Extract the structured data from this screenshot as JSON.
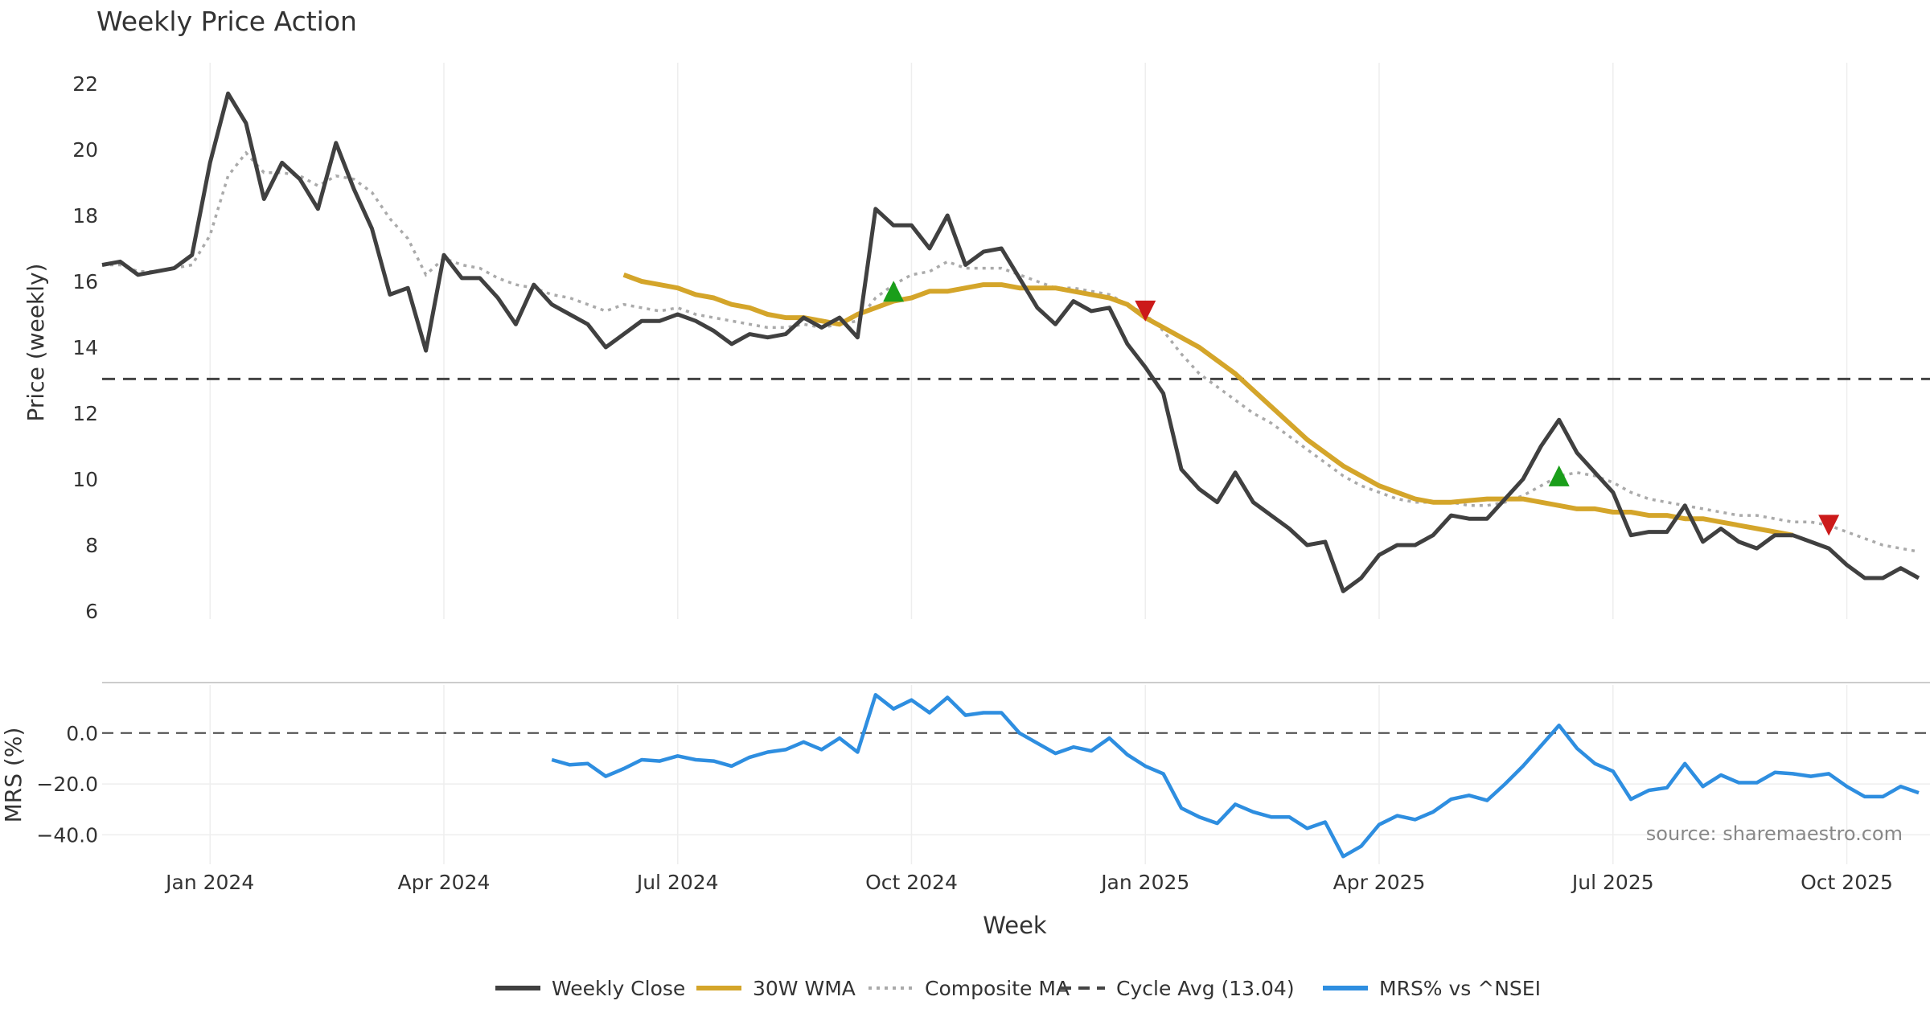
{
  "chart_data": {
    "type": "line",
    "title": "Weekly Price Action",
    "source_note": "source: sharemaestro.com",
    "xlabel": "Week",
    "x_ticks": [
      "Jan 2024",
      "Apr 2024",
      "Jul 2024",
      "Oct 2024",
      "Jan 2025",
      "Apr 2025",
      "Jul 2025",
      "Oct 2025"
    ],
    "x_tick_weeks": [
      6,
      19,
      32,
      45,
      58,
      71,
      84,
      97
    ],
    "x_range": [
      0,
      101
    ],
    "grid": true,
    "legend_position": "bottom-center",
    "panels": {
      "price": {
        "ylabel": "Price (weekly)",
        "ylim": [
          6,
          22
        ],
        "y_ticks": [
          "6",
          "8",
          "10",
          "12",
          "14",
          "16",
          "18",
          "20",
          "22"
        ],
        "y_tick_values": [
          6,
          8,
          10,
          12,
          14,
          16,
          18,
          20,
          22
        ]
      },
      "mrs": {
        "ylabel": "MRS (%)",
        "ylim": [
          -50,
          17
        ],
        "y_ticks": [
          "0.0",
          "−20.0",
          "−40.0"
        ],
        "y_tick_values": [
          0,
          -20,
          -40
        ]
      }
    },
    "legend": [
      {
        "label": "Weekly Close",
        "color": "#404040",
        "style": "solid"
      },
      {
        "label": "30W WMA",
        "color": "#d4a52a",
        "style": "solid"
      },
      {
        "label": "Composite MA",
        "color": "#aaaaaa",
        "style": "dotted"
      },
      {
        "label": "Cycle Avg (13.04)",
        "color": "#444444",
        "style": "dashed"
      },
      {
        "label": "MRS% vs ^NSEI",
        "color": "#2e8ee0",
        "style": "solid"
      }
    ],
    "cycle_avg": 13.04,
    "weekly_close": [
      16.5,
      16.6,
      16.2,
      16.3,
      16.4,
      16.8,
      19.6,
      21.7,
      20.8,
      18.5,
      19.6,
      19.1,
      18.2,
      20.2,
      18.8,
      17.6,
      15.6,
      15.8,
      13.9,
      16.8,
      16.1,
      16.1,
      15.5,
      14.7,
      15.9,
      15.3,
      15.0,
      14.7,
      14.0,
      14.4,
      14.8,
      14.8,
      15.0,
      14.8,
      14.5,
      14.1,
      14.4,
      14.3,
      14.4,
      14.9,
      14.6,
      14.9,
      14.3,
      18.2,
      17.7,
      17.7,
      17.0,
      18.0,
      16.5,
      16.9,
      17.0,
      16.1,
      15.2,
      14.7,
      15.4,
      15.1,
      15.2,
      14.1,
      13.4,
      12.6,
      10.3,
      9.7,
      9.3,
      10.2,
      9.3,
      8.9,
      8.5,
      8.0,
      8.1,
      6.6,
      7.0,
      7.7,
      8.0,
      8.0,
      8.3,
      8.9,
      8.8,
      8.8,
      9.4,
      10.0,
      11.0,
      11.8,
      10.8,
      10.2,
      9.6,
      8.3,
      8.4,
      8.4,
      9.2,
      8.1,
      8.5,
      8.1,
      7.9,
      8.3,
      8.3,
      8.1,
      7.9,
      7.4,
      7.0,
      7.0,
      7.3,
      7.0
    ],
    "wma_30w": {
      "start_week": 29,
      "values": [
        16.2,
        16.0,
        15.9,
        15.8,
        15.6,
        15.5,
        15.3,
        15.2,
        15.0,
        14.9,
        14.9,
        14.8,
        14.7,
        15.0,
        15.2,
        15.4,
        15.5,
        15.7,
        15.7,
        15.8,
        15.9,
        15.9,
        15.8,
        15.8,
        15.8,
        15.7,
        15.6,
        15.5,
        15.3,
        14.9,
        14.6,
        14.3,
        14.0,
        13.6,
        13.2,
        12.7,
        12.2,
        11.7,
        11.2,
        10.8,
        10.4,
        10.1,
        9.8,
        9.6,
        9.4,
        9.3,
        9.3,
        9.35,
        9.4,
        9.4,
        9.4,
        9.3,
        9.2,
        9.1,
        9.1,
        9.0,
        9.0,
        8.9,
        8.9,
        8.8,
        8.8,
        8.7,
        8.6,
        8.5,
        8.4,
        8.3
      ]
    },
    "composite_ma": [
      16.5,
      16.5,
      16.3,
      16.3,
      16.4,
      16.5,
      17.4,
      19.2,
      19.9,
      19.3,
      19.3,
      19.2,
      18.9,
      19.2,
      19.1,
      18.7,
      17.9,
      17.3,
      16.2,
      16.7,
      16.5,
      16.4,
      16.1,
      15.9,
      15.8,
      15.6,
      15.5,
      15.3,
      15.1,
      15.3,
      15.2,
      15.1,
      15.2,
      15.0,
      14.9,
      14.8,
      14.7,
      14.6,
      14.6,
      14.7,
      14.6,
      14.7,
      14.8,
      15.5,
      15.9,
      16.2,
      16.3,
      16.6,
      16.4,
      16.4,
      16.4,
      16.2,
      16.0,
      15.8,
      15.8,
      15.7,
      15.6,
      15.3,
      15.0,
      14.5,
      13.8,
      13.2,
      12.8,
      12.4,
      12.0,
      11.7,
      11.3,
      10.9,
      10.5,
      10.1,
      9.8,
      9.6,
      9.4,
      9.3,
      9.3,
      9.3,
      9.2,
      9.2,
      9.3,
      9.5,
      9.8,
      10.1,
      10.2,
      10.1,
      9.9,
      9.6,
      9.4,
      9.3,
      9.2,
      9.1,
      9.0,
      8.9,
      8.9,
      8.8,
      8.7,
      8.7,
      8.6,
      8.4,
      8.2,
      8.0,
      7.9,
      7.8
    ],
    "signals": [
      {
        "type": "buy",
        "week": 44,
        "price": 15.7
      },
      {
        "type": "sell",
        "week": 58,
        "price": 15.1
      },
      {
        "type": "buy",
        "week": 81,
        "price": 10.1
      },
      {
        "type": "sell",
        "week": 96,
        "price": 8.6
      }
    ],
    "mrs": {
      "start_week": 25,
      "values": [
        -10.5,
        -12.5,
        -12,
        -17,
        -14,
        -10.5,
        -11,
        -9,
        -10.5,
        -11,
        -13,
        -9.5,
        -7.5,
        -6.5,
        -3.5,
        -6.5,
        -2,
        -7.5,
        15,
        9.5,
        13,
        8,
        14,
        7,
        8,
        8,
        0,
        -4,
        -8,
        -5.5,
        -7,
        -2,
        -8.5,
        -13,
        -16,
        -29.5,
        -33,
        -35.5,
        -28,
        -31,
        -33,
        -33,
        -37.5,
        -35,
        -48.5,
        -44.5,
        -36,
        -32.5,
        -34,
        -31,
        -26,
        -24.5,
        -26.5,
        -20,
        -13,
        -5,
        3,
        -6,
        -12,
        -15,
        -26,
        -22.5,
        -21.5,
        -12,
        -21,
        -16.5,
        -19.5,
        -19.5,
        -15.5,
        -16,
        -17,
        -16,
        -21,
        -25,
        -25,
        -21,
        -23.5
      ]
    }
  }
}
